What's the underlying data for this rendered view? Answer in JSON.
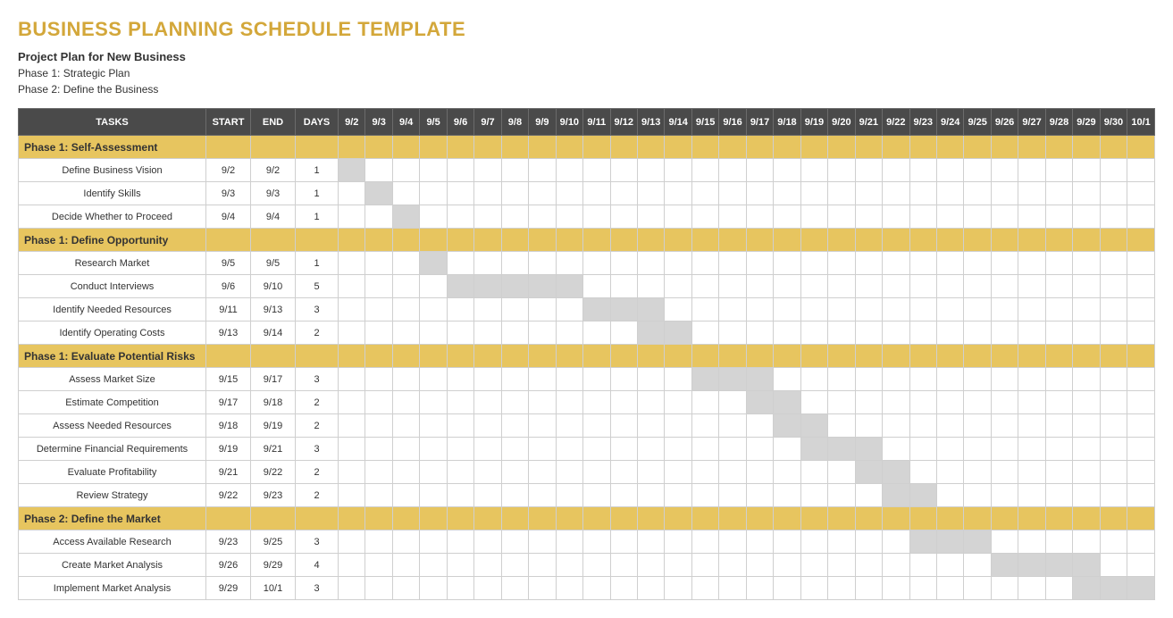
{
  "title": "BUSINESS PLANNING SCHEDULE TEMPLATE",
  "title_color": "#d3a73a",
  "subtitle": "Project Plan for New Business",
  "meta_lines": [
    "Phase 1: Strategic Plan",
    "Phase 2: Define the Business"
  ],
  "colors": {
    "header_bg": "#4a4a4a",
    "header_text": "#ffffff",
    "phase_bg": "#e7c55f",
    "phase_text": "#333333",
    "cell_border": "#cfcfcf",
    "gantt_fill": "#d4d4d4",
    "row_bg": "#ffffff"
  },
  "columns": {
    "tasks": "TASKS",
    "start": "START",
    "end": "END",
    "days": "DAYS"
  },
  "date_headers": [
    "9/2",
    "9/3",
    "9/4",
    "9/5",
    "9/6",
    "9/7",
    "9/8",
    "9/9",
    "9/10",
    "9/11",
    "9/12",
    "9/13",
    "9/14",
    "9/15",
    "9/16",
    "9/17",
    "9/18",
    "9/19",
    "9/20",
    "9/21",
    "9/22",
    "9/23",
    "9/24",
    "9/25",
    "9/26",
    "9/27",
    "9/28",
    "9/29",
    "9/30",
    "10/1"
  ],
  "sections": [
    {
      "label": "Phase 1: Self-Assessment",
      "tasks": [
        {
          "name": "Define Business Vision",
          "start": "9/2",
          "end": "9/2",
          "days": 1,
          "bar_start": "9/2",
          "bar_end": "9/2"
        },
        {
          "name": "Identify Skills",
          "start": "9/3",
          "end": "9/3",
          "days": 1,
          "bar_start": "9/3",
          "bar_end": "9/3"
        },
        {
          "name": "Decide Whether to Proceed",
          "start": "9/4",
          "end": "9/4",
          "days": 1,
          "bar_start": "9/4",
          "bar_end": "9/4"
        }
      ]
    },
    {
      "label": "Phase 1: Define Opportunity",
      "tasks": [
        {
          "name": "Research Market",
          "start": "9/5",
          "end": "9/5",
          "days": 1,
          "bar_start": "9/5",
          "bar_end": "9/5"
        },
        {
          "name": "Conduct Interviews",
          "start": "9/6",
          "end": "9/10",
          "days": 5,
          "bar_start": "9/6",
          "bar_end": "9/10"
        },
        {
          "name": "Identify Needed Resources",
          "start": "9/11",
          "end": "9/13",
          "days": 3,
          "bar_start": "9/11",
          "bar_end": "9/13"
        },
        {
          "name": "Identify Operating Costs",
          "start": "9/13",
          "end": "9/14",
          "days": 2,
          "bar_start": "9/13",
          "bar_end": "9/14"
        }
      ]
    },
    {
      "label": "Phase 1: Evaluate Potential Risks",
      "tasks": [
        {
          "name": "Assess Market Size",
          "start": "9/15",
          "end": "9/17",
          "days": 3,
          "bar_start": "9/15",
          "bar_end": "9/17"
        },
        {
          "name": "Estimate Competition",
          "start": "9/17",
          "end": "9/18",
          "days": 2,
          "bar_start": "9/17",
          "bar_end": "9/18"
        },
        {
          "name": "Assess Needed Resources",
          "start": "9/18",
          "end": "9/19",
          "days": 2,
          "bar_start": "9/18",
          "bar_end": "9/19"
        },
        {
          "name": "Determine Financial Requirements",
          "start": "9/19",
          "end": "9/21",
          "days": 3,
          "bar_start": "9/19",
          "bar_end": "9/21"
        },
        {
          "name": "Evaluate Profitability",
          "start": "9/21",
          "end": "9/22",
          "days": 2,
          "bar_start": "9/21",
          "bar_end": "9/22"
        },
        {
          "name": "Review Strategy",
          "start": "9/22",
          "end": "9/23",
          "days": 2,
          "bar_start": "9/22",
          "bar_end": "9/23"
        }
      ]
    },
    {
      "label": "Phase 2: Define the Market",
      "tasks": [
        {
          "name": "Access Available Research",
          "start": "9/23",
          "end": "9/25",
          "days": 3,
          "bar_start": "9/23",
          "bar_end": "9/25"
        },
        {
          "name": "Create Market Analysis",
          "start": "9/26",
          "end": "9/29",
          "days": 4,
          "bar_start": "9/26",
          "bar_end": "9/29"
        },
        {
          "name": "Implement Market Analysis",
          "start": "9/29",
          "end": "10/1",
          "days": 3,
          "bar_start": "9/29",
          "bar_end": "10/1"
        }
      ]
    }
  ]
}
